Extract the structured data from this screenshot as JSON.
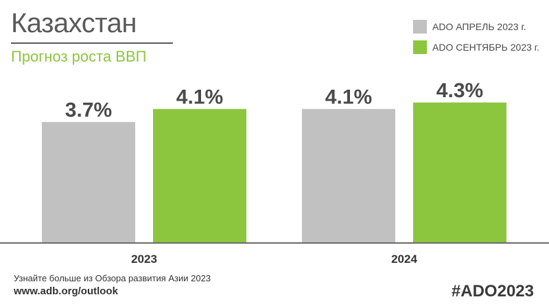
{
  "header": {
    "title": "Казахстан",
    "subtitle": "Прогноз роста ВВП"
  },
  "legend": [
    {
      "label": "ADO АПРЕЛЬ 2023 г.",
      "color": "#c1c1c1"
    },
    {
      "label": "ADO СЕНТЯБРЬ 2023 г.",
      "color": "#8cc63f"
    }
  ],
  "chart_data": {
    "type": "bar",
    "categories": [
      "2023",
      "2024"
    ],
    "series": [
      {
        "name": "ADO АПРЕЛЬ 2023 г.",
        "values": [
          3.7,
          4.1
        ],
        "labels": [
          "3.7%",
          "4.1%"
        ],
        "color": "#c1c1c1"
      },
      {
        "name": "ADO СЕНТЯБРЬ 2023 г.",
        "values": [
          4.1,
          4.3
        ],
        "labels": [
          "4.1%",
          "4.3%"
        ],
        "color": "#8cc63f"
      }
    ],
    "ylim": [
      0,
      6
    ],
    "grid": false,
    "legend_position": "top-right"
  },
  "footer": {
    "note": "Узнайте больше из Обзора развития Азии 2023",
    "url": "www.adb.org/outlook",
    "hashtag": "#ADO2023"
  }
}
